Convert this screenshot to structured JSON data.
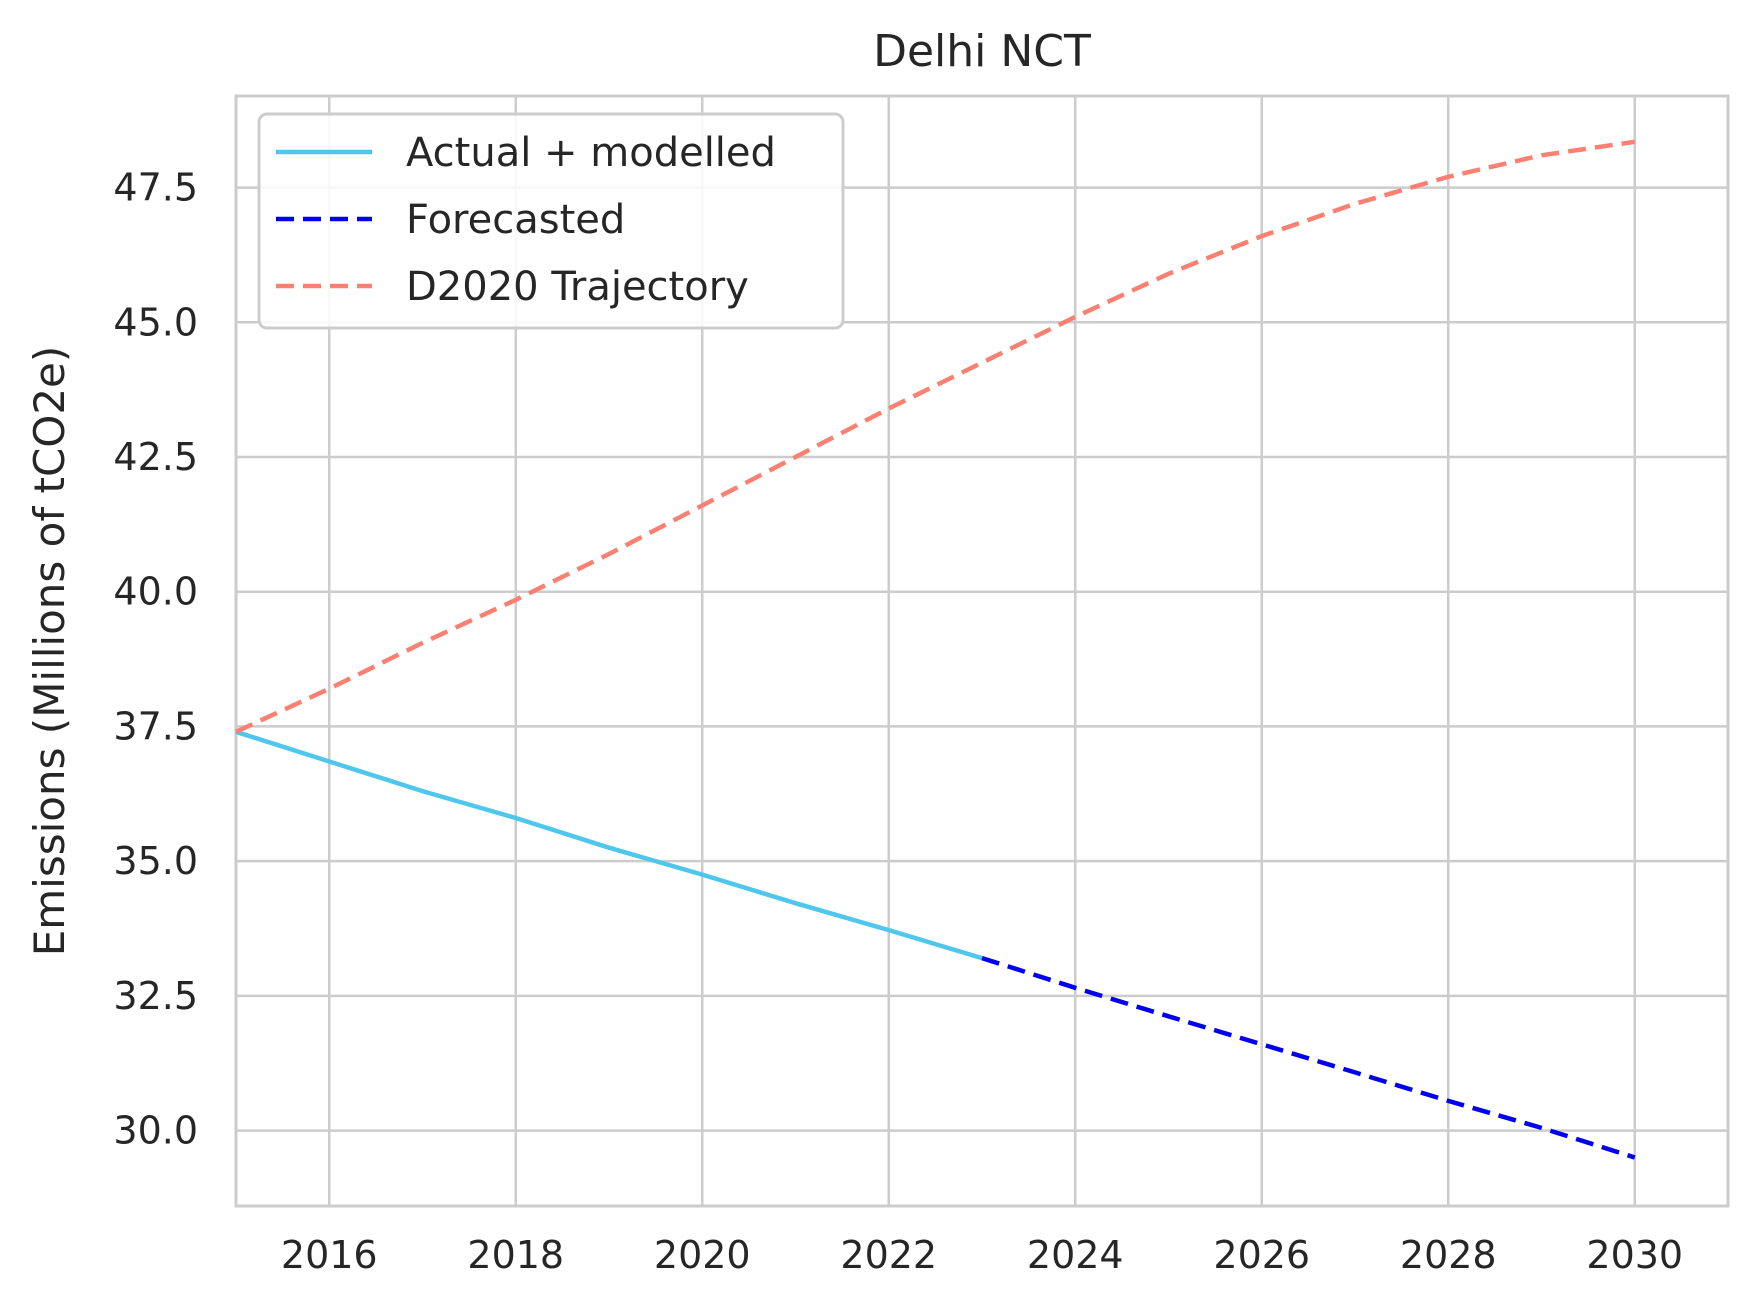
{
  "chart_data": {
    "type": "line",
    "title": "Delhi NCT",
    "xlabel": "",
    "ylabel": "Emissions (Millions of tCO2e)",
    "xlim": [
      2015,
      2031
    ],
    "ylim": [
      28.6,
      49.2
    ],
    "x_ticks": [
      2016,
      2018,
      2020,
      2022,
      2024,
      2026,
      2028,
      2030
    ],
    "y_ticks": [
      30.0,
      32.5,
      35.0,
      37.5,
      40.0,
      42.5,
      45.0,
      47.5
    ],
    "x_tick_labels": [
      "2016",
      "2018",
      "2020",
      "2022",
      "2024",
      "2026",
      "2028",
      "2030"
    ],
    "y_tick_labels": [
      "30.0",
      "32.5",
      "35.0",
      "37.5",
      "40.0",
      "42.5",
      "45.0",
      "47.5"
    ],
    "grid": true,
    "legend_position": "top-left",
    "series": [
      {
        "name": "Actual + modelled",
        "color": "#4fc7ec",
        "style": "solid",
        "x": [
          2015,
          2016,
          2017,
          2018,
          2019,
          2020,
          2021,
          2022,
          2023
        ],
        "y": [
          37.4,
          36.85,
          36.3,
          35.8,
          35.25,
          34.75,
          34.22,
          33.72,
          33.2
        ]
      },
      {
        "name": "Forecasted",
        "color": "#0000ee",
        "style": "dashed",
        "x": [
          2023,
          2024,
          2025,
          2026,
          2027,
          2028,
          2029,
          2030
        ],
        "y": [
          33.2,
          32.65,
          32.12,
          31.6,
          31.08,
          30.55,
          30.05,
          29.5
        ]
      },
      {
        "name": "D2020 Trajectory",
        "color": "#fa8072",
        "style": "dashed",
        "x": [
          2015,
          2016,
          2017,
          2018,
          2019,
          2020,
          2021,
          2022,
          2023,
          2024,
          2025,
          2026,
          2027,
          2028,
          2029,
          2030
        ],
        "y": [
          37.4,
          38.2,
          39.05,
          39.85,
          40.7,
          41.6,
          42.5,
          43.4,
          44.25,
          45.1,
          45.9,
          46.6,
          47.2,
          47.7,
          48.1,
          48.35
        ]
      }
    ]
  }
}
